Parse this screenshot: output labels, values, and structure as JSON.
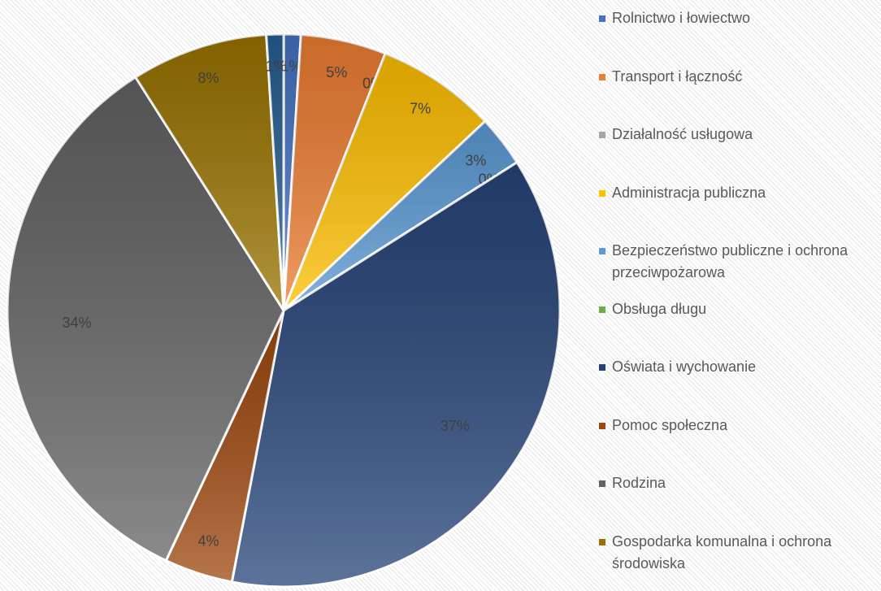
{
  "chart_data": {
    "type": "pie",
    "categories": [
      "Rolnictwo i łowiectwo",
      "Transport i łączność",
      "Działalność usługowa",
      "Administracja publiczna",
      "Bezpieczeństwo publiczne i ochrona przeciwpożarowa",
      "Obsługa długu",
      "Oświata i wychowanie",
      "Pomoc społeczna",
      "Rodzina",
      "Gospodarka komunalna i ochrona środowiska",
      null
    ],
    "values": [
      1,
      5,
      0,
      7,
      3,
      0,
      37,
      4,
      34,
      8,
      1
    ],
    "value_labels": [
      "1%",
      "5%",
      "0%",
      "7%",
      "3%",
      "0%",
      "37%",
      "4%",
      "34%",
      "8%",
      "1%"
    ],
    "colors": [
      "#4472c4",
      "#ed7d31",
      "#a5a5a5",
      "#ffc000",
      "#5b9bd5",
      "#70ad47",
      "#264478",
      "#9e480e",
      "#636363",
      "#997300",
      "#255e91"
    ],
    "legend": "right"
  }
}
